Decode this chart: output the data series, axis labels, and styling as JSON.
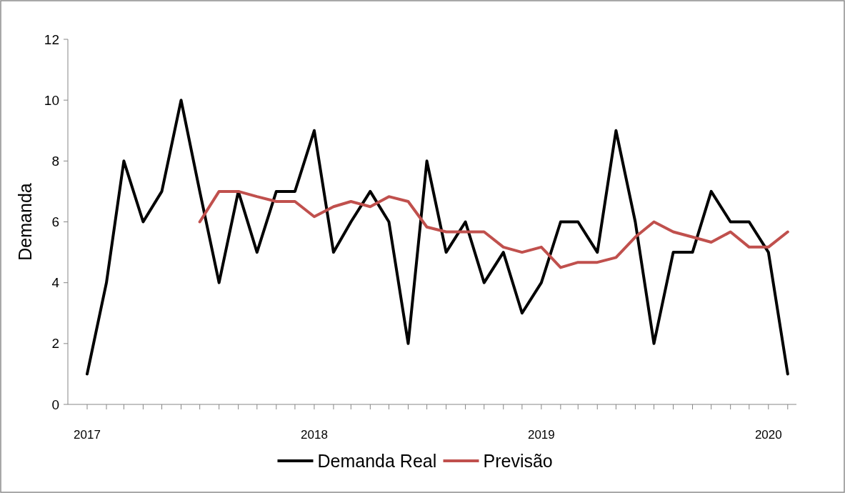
{
  "chart_data": {
    "type": "line",
    "ylabel": "Demanda",
    "x": [
      "2017-01",
      "2017-02",
      "2017-03",
      "2017-04",
      "2017-05",
      "2017-06",
      "2017-07",
      "2017-08",
      "2017-09",
      "2017-10",
      "2017-11",
      "2017-12",
      "2018-01",
      "2018-02",
      "2018-03",
      "2018-04",
      "2018-05",
      "2018-06",
      "2018-07",
      "2018-08",
      "2018-09",
      "2018-10",
      "2018-11",
      "2018-12",
      "2019-01",
      "2019-02",
      "2019-03",
      "2019-04",
      "2019-05",
      "2019-06",
      "2019-07",
      "2019-08",
      "2019-09",
      "2019-10",
      "2019-11",
      "2019-12",
      "2020-01",
      "2020-02"
    ],
    "series": [
      {
        "name": "Demanda Real",
        "color": "#000000",
        "values": [
          1,
          4,
          8,
          6,
          7,
          10,
          7,
          4,
          7,
          5,
          7,
          7,
          9,
          5,
          6,
          7,
          6,
          2,
          8,
          5,
          6,
          4,
          5,
          3,
          4,
          6,
          6,
          5,
          9,
          6,
          2,
          5,
          5,
          7,
          6,
          6,
          5,
          1
        ]
      },
      {
        "name": "Previsão",
        "color": "#c0504d",
        "values": [
          null,
          null,
          null,
          null,
          null,
          null,
          6,
          7,
          7,
          6.83,
          6.67,
          6.67,
          6.17,
          6.5,
          6.67,
          6.5,
          6.83,
          6.67,
          5.83,
          5.67,
          5.67,
          5.67,
          5.17,
          5,
          5.17,
          4.5,
          4.67,
          4.67,
          4.83,
          5.5,
          6,
          5.67,
          5.5,
          5.33,
          5.67,
          5.17,
          5.17,
          5.67
        ]
      }
    ],
    "xlim": [
      "2016-12-01",
      "2020-02-15"
    ],
    "xticks": [
      {
        "value": "2017-01",
        "label": "2017"
      },
      {
        "value": "2017-02",
        "label": null
      },
      {
        "value": "2017-03",
        "label": null
      },
      {
        "value": "2017-04",
        "label": null
      },
      {
        "value": "2017-05",
        "label": null
      },
      {
        "value": "2017-06",
        "label": null
      },
      {
        "value": "2017-07",
        "label": null
      },
      {
        "value": "2017-08",
        "label": null
      },
      {
        "value": "2017-09",
        "label": null
      },
      {
        "value": "2017-10",
        "label": null
      },
      {
        "value": "2017-11",
        "label": null
      },
      {
        "value": "2017-12",
        "label": null
      },
      {
        "value": "2018-01",
        "label": "2018"
      },
      {
        "value": "2018-02",
        "label": null
      },
      {
        "value": "2018-03",
        "label": null
      },
      {
        "value": "2018-04",
        "label": null
      },
      {
        "value": "2018-05",
        "label": null
      },
      {
        "value": "2018-06",
        "label": null
      },
      {
        "value": "2018-07",
        "label": null
      },
      {
        "value": "2018-08",
        "label": null
      },
      {
        "value": "2018-09",
        "label": null
      },
      {
        "value": "2018-10",
        "label": null
      },
      {
        "value": "2018-11",
        "label": null
      },
      {
        "value": "2018-12",
        "label": null
      },
      {
        "value": "2019-01",
        "label": "2019"
      },
      {
        "value": "2019-02",
        "label": null
      },
      {
        "value": "2019-03",
        "label": null
      },
      {
        "value": "2019-04",
        "label": null
      },
      {
        "value": "2019-05",
        "label": null
      },
      {
        "value": "2019-06",
        "label": null
      },
      {
        "value": "2019-07",
        "label": null
      },
      {
        "value": "2019-08",
        "label": null
      },
      {
        "value": "2019-09",
        "label": null
      },
      {
        "value": "2019-10",
        "label": null
      },
      {
        "value": "2019-11",
        "label": null
      },
      {
        "value": "2019-12",
        "label": null
      },
      {
        "value": "2020-01",
        "label": "2020"
      },
      {
        "value": "2020-02",
        "label": null
      }
    ],
    "ylim": [
      0,
      12
    ],
    "yticks": [
      0,
      2,
      4,
      6,
      8,
      10,
      12
    ],
    "grid": false,
    "legend": "bottom",
    "marker": "none",
    "line_style": "solid"
  }
}
